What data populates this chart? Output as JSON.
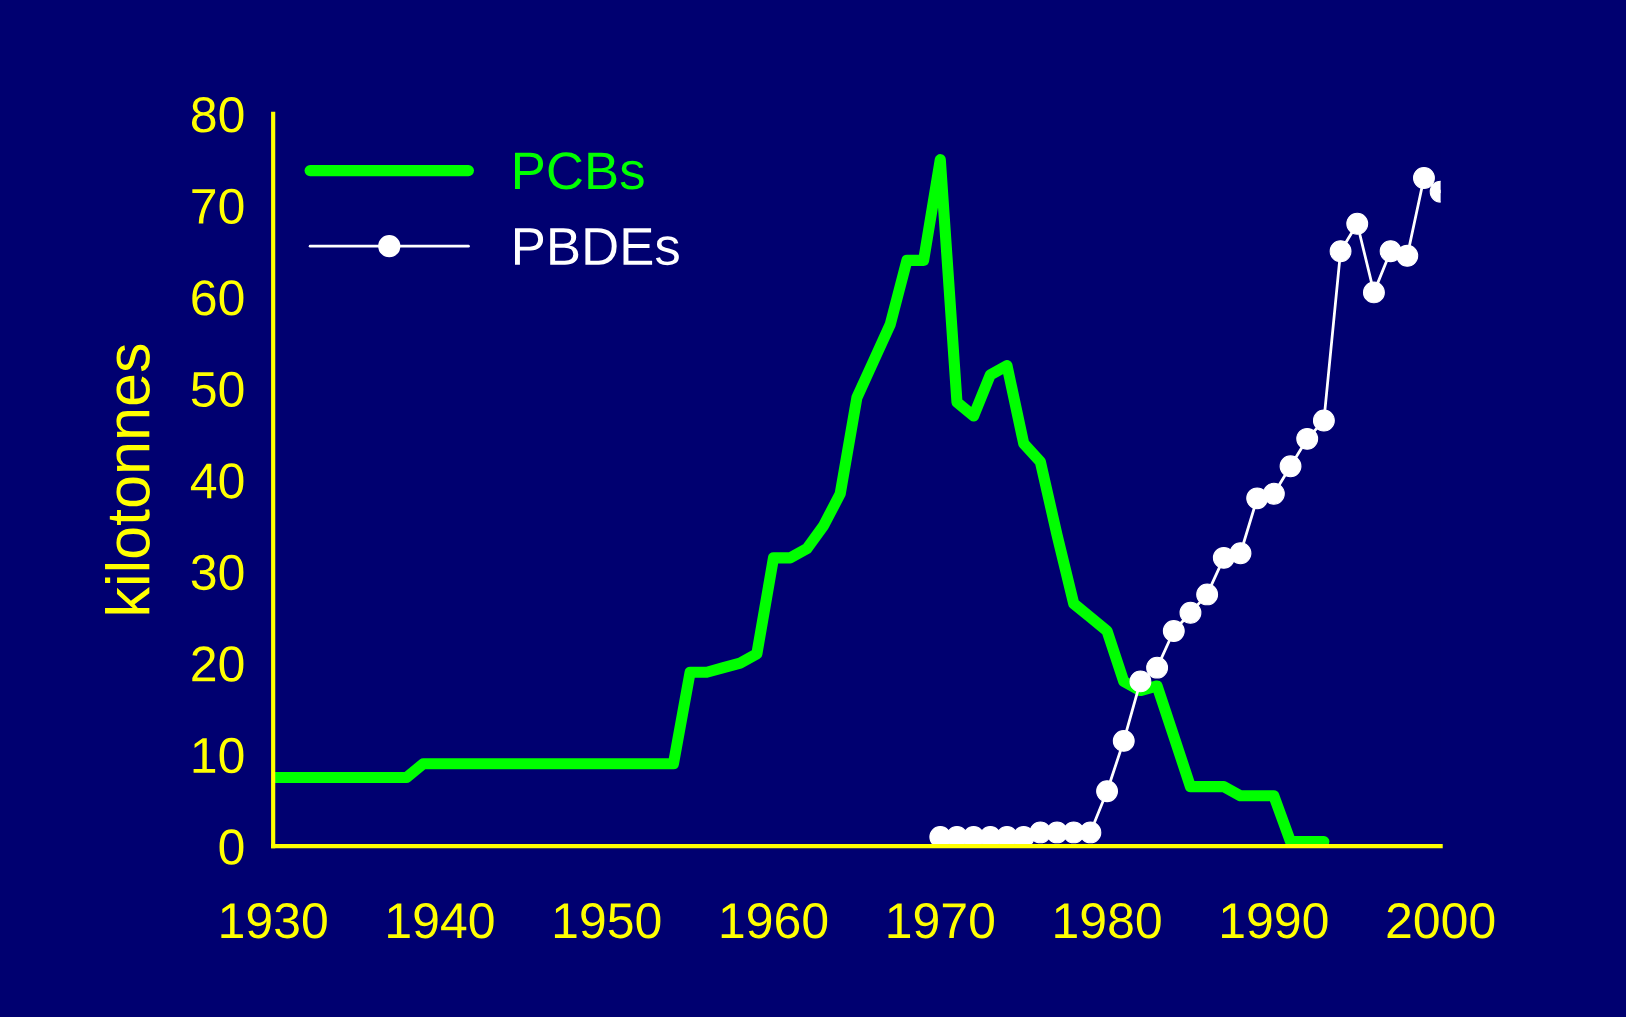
{
  "chart_data": {
    "type": "line",
    "ylabel": "kilotonnes",
    "xlim": [
      1930,
      2000
    ],
    "xticks": [
      1930,
      1940,
      1950,
      1960,
      1970,
      1980,
      1990,
      2000
    ],
    "ylim": [
      0,
      80
    ],
    "yticks": [
      0,
      10,
      20,
      30,
      40,
      50,
      60,
      70,
      80
    ],
    "grid": false,
    "legend": "top left",
    "series": [
      {
        "name": "PCBs",
        "color": "#00ff00",
        "marker": "none",
        "x": [
          1930,
          1931,
          1932,
          1933,
          1934,
          1935,
          1936,
          1937,
          1938,
          1939,
          1940,
          1941,
          1942,
          1943,
          1944,
          1945,
          1946,
          1947,
          1948,
          1949,
          1950,
          1951,
          1952,
          1953,
          1954,
          1955,
          1956,
          1957,
          1958,
          1959,
          1960,
          1961,
          1962,
          1963,
          1964,
          1965,
          1966,
          1967,
          1968,
          1969,
          1970,
          1971,
          1972,
          1973,
          1974,
          1975,
          1976,
          1977,
          1978,
          1979,
          1980,
          1981,
          1982,
          1983,
          1984,
          1985,
          1986,
          1987,
          1988,
          1989,
          1990,
          1991,
          1992,
          1993
        ],
        "values": [
          7.5,
          7.5,
          7.5,
          7.5,
          7.5,
          7.5,
          7.5,
          7.5,
          7.5,
          9,
          9,
          9,
          9,
          9,
          9,
          9,
          9,
          9,
          9,
          9,
          9,
          9,
          9,
          9,
          9,
          19,
          19,
          19.5,
          20,
          21,
          31.5,
          31.5,
          32.5,
          35,
          38.5,
          49,
          53,
          57,
          64,
          64,
          75,
          48.5,
          47,
          51.5,
          52.5,
          44,
          42,
          34,
          26.5,
          25,
          23.5,
          18,
          17,
          17.5,
          12,
          6.5,
          6.5,
          6.5,
          5.5,
          5.5,
          5.5,
          0.5,
          0.5,
          0.5
        ]
      },
      {
        "name": "PBDEs",
        "color": "#ffffff",
        "marker": "circle",
        "x": [
          1970,
          1971,
          1972,
          1973,
          1974,
          1975,
          1976,
          1977,
          1978,
          1979,
          1980,
          1981,
          1982,
          1983,
          1984,
          1985,
          1986,
          1987,
          1988,
          1989,
          1990,
          1991,
          1992,
          1993,
          1994,
          1995,
          1996,
          1997,
          1998,
          1999,
          2000
        ],
        "values": [
          1,
          1,
          1,
          1,
          1,
          1,
          1.5,
          1.5,
          1.5,
          1.5,
          6,
          11.5,
          18,
          19.5,
          23.5,
          25.5,
          27.5,
          31.5,
          32,
          38,
          38.5,
          41.5,
          44.5,
          46.5,
          65,
          68,
          60.5,
          65,
          64.5,
          73,
          71.5
        ]
      }
    ]
  }
}
